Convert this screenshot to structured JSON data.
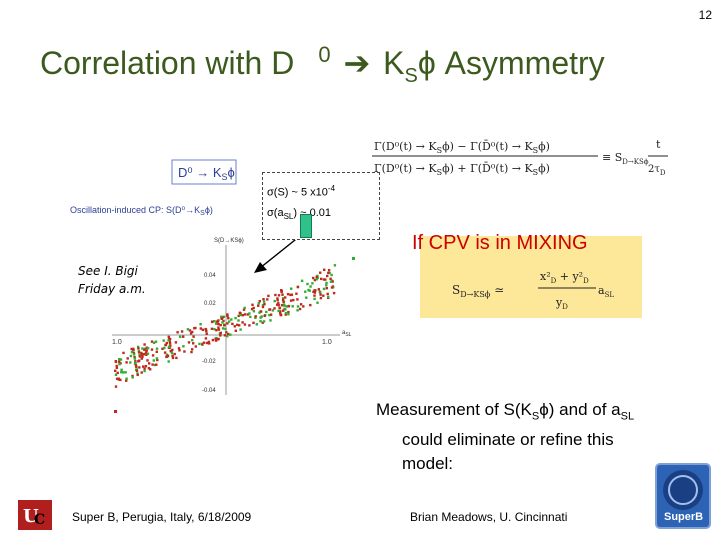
{
  "page_number": "12",
  "title": {
    "part1": "Correlation with D",
    "sup": "0",
    "arrow": "➔",
    "part2": "K",
    "sub": "S",
    "part3": "ϕ Asymmetry"
  },
  "equation_box": {
    "formula_label": "Γ(D0(t) → KSϕ) − Γ(D̄0(t) → KSϕ) / Γ(D0(t) → KSϕ) + Γ(D̄0(t) → KSϕ) ≡ S_{D→KSϕ} · t / 2τD"
  },
  "cpv_box": {
    "heading": "If CPV is in MIXING",
    "formula": "S_{D→KSϕ} ≃ (x²_D + y²_D)/y_D · a_SL"
  },
  "sigma_callout": {
    "line1_prefix": "σ(S) ~ 5 x10",
    "line1_exp": "-4",
    "line2_prefix": "σ(a",
    "line2_sub": "SL",
    "line2_suffix": ") ~ 0.01"
  },
  "plot": {
    "legend_box": "D0 → KSϕ",
    "ylabel": "Oscillation-induced CP: S(D0→KSϕ)",
    "x_tick_left": "-1.0",
    "x_tick_right": "1.0",
    "x_label": "aSL",
    "y_tick_top": "0.04",
    "y_tick_mid": "0.02",
    "y_tick_low": "-0.02",
    "y_tick_bottom": "-0.04",
    "corner_label": "S(D→KSϕ)"
  },
  "see_note": {
    "line1": "See I. Bigi",
    "line2": "Friday a.m."
  },
  "measurement": {
    "line1_a": "Measurement of  S(K",
    "line1_sub": "S",
    "line1_b": "ϕ) and of  a",
    "line1_sub2": "SL",
    "line2": "could eliminate or refine this",
    "line3": "model:"
  },
  "footer": {
    "venue": "Super B, Perugia, Italy, 6/18/2009",
    "author": "Brian Meadows, U. Cincinnati"
  },
  "colors": {
    "title": "#3c5a1e",
    "cpv_heading": "#cc0000",
    "formula_bg": "#fde799",
    "red_points": "#c0281e",
    "green_points": "#2fae2f"
  }
}
